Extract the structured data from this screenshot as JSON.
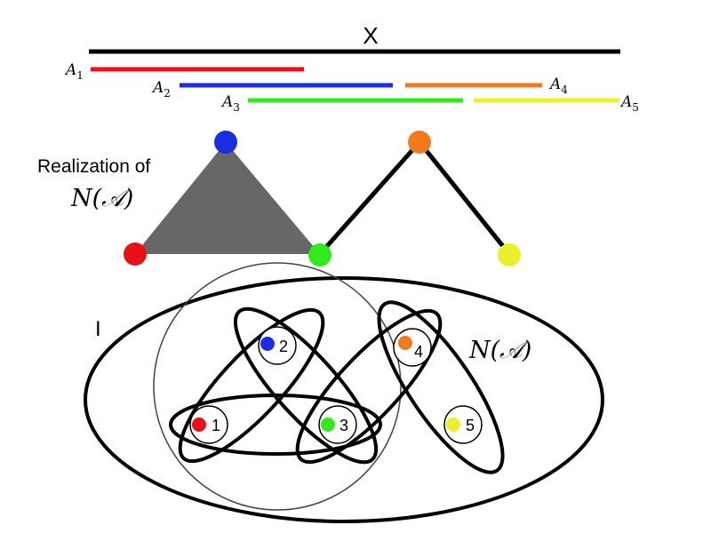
{
  "top": {
    "set_label": "X",
    "intervals": [
      {
        "name": "A",
        "sub": "1",
        "color": "#e8111a"
      },
      {
        "name": "A",
        "sub": "2",
        "color": "#1a2ee0"
      },
      {
        "name": "A",
        "sub": "3",
        "color": "#33e81c"
      },
      {
        "name": "A",
        "sub": "4",
        "color": "#ef7b1c"
      },
      {
        "name": "A",
        "sub": "5",
        "color": "#eaf02a"
      }
    ]
  },
  "realization": {
    "label_line1": "Realization of",
    "label_line2": "N(𝒜)"
  },
  "index_set": {
    "label": "I",
    "nerve_label": "N(𝒜)",
    "nodes": [
      {
        "label": "1",
        "color": "#e8111a"
      },
      {
        "label": "2",
        "color": "#1a2ee0"
      },
      {
        "label": "3",
        "color": "#33e81c"
      },
      {
        "label": "4",
        "color": "#ef7b1c"
      },
      {
        "label": "5",
        "color": "#eaf02a"
      }
    ]
  },
  "colors": {
    "black": "#000000",
    "gray_fill": "#676767",
    "thin_circle": "#444444"
  }
}
